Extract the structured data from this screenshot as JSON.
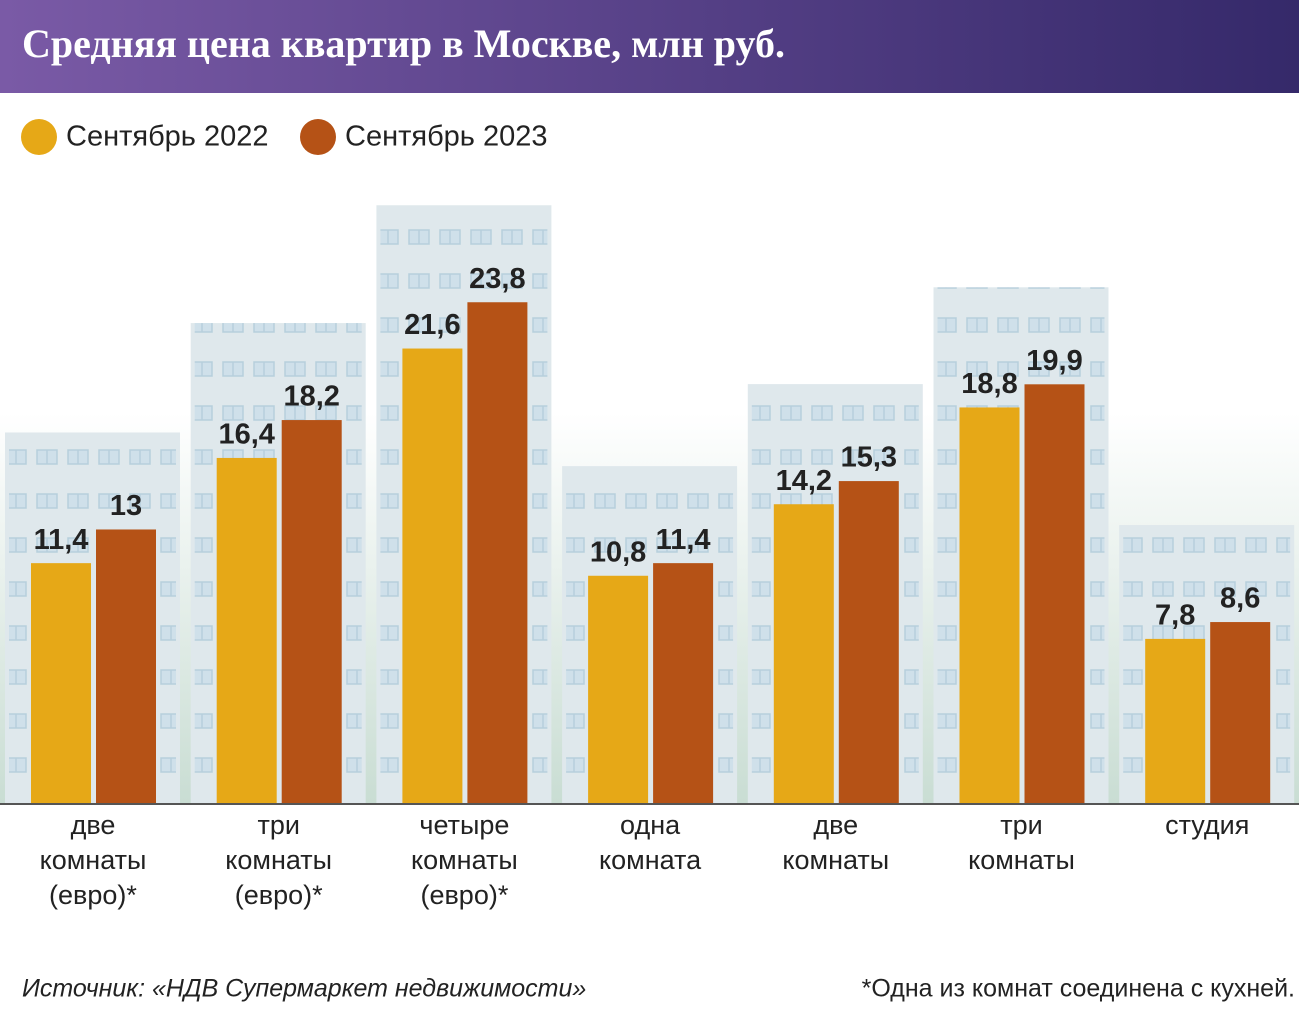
{
  "chart_data": {
    "type": "bar",
    "title": "Средняя цена квартир в Москве, млн руб.",
    "categories": [
      [
        "две",
        "комнаты",
        "(евро)*"
      ],
      [
        "три",
        "комнаты",
        "(евро)*"
      ],
      [
        "четыре",
        "комнаты",
        "(евро)*"
      ],
      [
        "одна",
        "комната"
      ],
      [
        "две",
        "комнаты"
      ],
      [
        "три",
        "комнаты"
      ],
      [
        "студия"
      ]
    ],
    "series": [
      {
        "name": "Сентябрь 2022",
        "color": "#e6a817",
        "values": [
          11.4,
          16.4,
          21.6,
          10.8,
          14.2,
          18.8,
          7.8
        ],
        "value_labels": [
          "11,4",
          "16,4",
          "21,6",
          "10,8",
          "14,2",
          "18,8",
          "7,8"
        ]
      },
      {
        "name": "Сентябрь 2023",
        "color": "#b55216",
        "values": [
          13,
          18.2,
          23.8,
          11.4,
          15.3,
          19.9,
          8.6
        ],
        "value_labels": [
          "13",
          "18,2",
          "23,8",
          "11,4",
          "15,3",
          "19,9",
          "8,6"
        ]
      }
    ],
    "ylim": [
      0,
      25
    ],
    "source": "Источник: «НДВ Супермаркет недвижимости»",
    "note": "*Одна из комнат соединена с кухней."
  }
}
